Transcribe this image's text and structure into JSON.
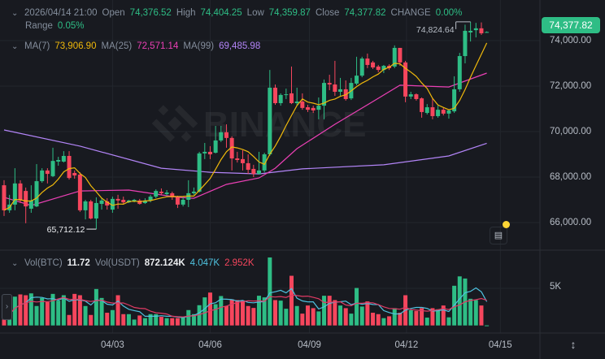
{
  "header": {
    "datetime": "2026/04/14 21:00",
    "open_label": "Open",
    "open": "74,376.52",
    "high_label": "High",
    "high": "74,404.25",
    "low_label": "Low",
    "low": "74,359.87",
    "close_label": "Close",
    "close": "74,377.82",
    "change_label": "CHANGE",
    "change": "0.00%",
    "range_label": "Range",
    "range": "0.05%"
  },
  "ma": {
    "ma7_label": "MA(7)",
    "ma7": "73,906.90",
    "ma25_label": "MA(25)",
    "ma25": "72,571.14",
    "ma99_label": "MA(99)",
    "ma99": "69,485.98"
  },
  "volume": {
    "btc_label": "Vol(BTC)",
    "btc": "11.72",
    "usdt_label": "Vol(USDT)",
    "usdt": "872.124K",
    "ma_a": "4.047K",
    "ma_b": "2.952K",
    "axis_label": "5K"
  },
  "price_badge": "74,377.82",
  "watermark": "BINANCE",
  "colors": {
    "up": "#2ebd85",
    "down": "#f6465d",
    "ma7": "#f0b90b",
    "ma25": "#eb40b5",
    "ma99": "#b385f8",
    "vol_ma_a": "#4fc3e0",
    "vol_ma_b": "#e03a64",
    "background": "#181a20"
  },
  "chart_data": {
    "type": "candlestick",
    "interval_hours": 4,
    "ylim": [
      64950,
      76000
    ],
    "y_ticks": [
      "74,000.00",
      "72,000.00",
      "70,000.00",
      "68,000.00",
      "66,000.00"
    ],
    "y_tick_values": [
      74000,
      72000,
      70000,
      68000,
      66000
    ],
    "x_ticks": [
      "04/03",
      "04/06",
      "04/09",
      "04/12",
      "04/15"
    ],
    "x_tick_candle_index": [
      20,
      38,
      56.3,
      74.2,
      91.5
    ],
    "high_marker": {
      "label": "74,824.64",
      "index": 86,
      "value": 74824.64
    },
    "low_marker": {
      "label": "65,712.12",
      "index": 17,
      "value": 65712.12
    },
    "ohlc": [
      [
        67640,
        67860,
        66290,
        66540
      ],
      [
        66540,
        67220,
        66430,
        66790
      ],
      [
        66790,
        68390,
        66540,
        67720
      ],
      [
        67720,
        67860,
        66860,
        66970
      ],
      [
        67390,
        67540,
        65970,
        66710
      ],
      [
        66610,
        67640,
        66430,
        66970
      ],
      [
        66710,
        68570,
        66680,
        67820
      ],
      [
        67820,
        68390,
        67750,
        68290
      ],
      [
        68290,
        68390,
        67720,
        68140
      ],
      [
        68040,
        69290,
        68000,
        68710
      ],
      [
        68680,
        68890,
        68500,
        68750
      ],
      [
        68680,
        69140,
        68640,
        68930
      ],
      [
        68930,
        69140,
        67890,
        67960
      ],
      [
        68180,
        68290,
        67930,
        68070
      ],
      [
        68110,
        68210,
        66470,
        66540
      ],
      [
        66540,
        67000,
        66140,
        66930
      ],
      [
        66930,
        67000,
        66140,
        66180
      ],
      [
        66180,
        67110,
        65712.12,
        66860
      ],
      [
        66820,
        67070,
        66570,
        66970
      ],
      [
        66930,
        67070,
        66570,
        66750
      ],
      [
        66570,
        67140,
        66430,
        67040
      ],
      [
        67040,
        67220,
        66610,
        66970
      ],
      [
        67000,
        67140,
        66790,
        66890
      ],
      [
        66890,
        67000,
        66860,
        66970
      ],
      [
        66930,
        67040,
        66890,
        67000
      ],
      [
        66970,
        67040,
        66790,
        66820
      ],
      [
        66860,
        67070,
        66820,
        66970
      ],
      [
        66970,
        67220,
        66890,
        67140
      ],
      [
        67140,
        67460,
        67070,
        67390
      ],
      [
        67360,
        67500,
        67220,
        67290
      ],
      [
        67250,
        67430,
        67180,
        67320
      ],
      [
        67290,
        67360,
        67000,
        67110
      ],
      [
        67110,
        67180,
        66640,
        66790
      ],
      [
        66790,
        67110,
        66710,
        67000
      ],
      [
        67000,
        67860,
        66680,
        67290
      ],
      [
        67290,
        67540,
        67220,
        67360
      ],
      [
        67360,
        69110,
        67320,
        69040
      ],
      [
        69040,
        69500,
        68790,
        69110
      ],
      [
        69110,
        69360,
        68790,
        69000
      ],
      [
        69070,
        70250,
        69040,
        69610
      ],
      [
        69610,
        70250,
        69540,
        69970
      ],
      [
        69970,
        70320,
        69290,
        69720
      ],
      [
        69720,
        69790,
        68290,
        68820
      ],
      [
        68820,
        69110,
        68640,
        68750
      ],
      [
        68790,
        69180,
        68290,
        68610
      ],
      [
        68610,
        69000,
        68140,
        68320
      ],
      [
        68360,
        68540,
        68000,
        68140
      ],
      [
        68140,
        69110,
        68110,
        68290
      ],
      [
        68290,
        69070,
        68210,
        69000
      ],
      [
        69000,
        72710,
        68930,
        71930
      ],
      [
        71930,
        72070,
        71180,
        71250
      ],
      [
        71250,
        71680,
        71140,
        71610
      ],
      [
        71610,
        71890,
        71430,
        71640
      ],
      [
        71680,
        72860,
        71210,
        71250
      ],
      [
        71250,
        71930,
        71140,
        71320
      ],
      [
        71320,
        71680,
        70960,
        71040
      ],
      [
        71070,
        71180,
        70860,
        70960
      ],
      [
        71040,
        71140,
        70820,
        70930
      ],
      [
        70960,
        71500,
        70540,
        71140
      ],
      [
        71140,
        72290,
        70540,
        72140
      ],
      [
        72140,
        72500,
        71820,
        72070
      ],
      [
        72070,
        73110,
        71570,
        71750
      ],
      [
        71750,
        72360,
        71570,
        71860
      ],
      [
        71860,
        72250,
        71360,
        71430
      ],
      [
        71460,
        72360,
        71390,
        72140
      ],
      [
        72110,
        73290,
        72040,
        72460
      ],
      [
        72460,
        73290,
        72390,
        73210
      ],
      [
        73210,
        73430,
        72790,
        72930
      ],
      [
        73040,
        73110,
        72750,
        72820
      ],
      [
        72860,
        72930,
        72610,
        72710
      ],
      [
        72710,
        72930,
        72570,
        72890
      ],
      [
        72890,
        72960,
        72710,
        72790
      ],
      [
        72860,
        73790,
        72790,
        73680
      ],
      [
        73680,
        73680,
        72890,
        73040
      ],
      [
        73040,
        73110,
        71290,
        71540
      ],
      [
        71540,
        71750,
        71430,
        71640
      ],
      [
        71640,
        71680,
        71360,
        71430
      ],
      [
        71460,
        71500,
        70610,
        70860
      ],
      [
        70820,
        71210,
        70750,
        71070
      ],
      [
        71070,
        71460,
        70540,
        70680
      ],
      [
        70680,
        71140,
        70610,
        70960
      ],
      [
        70960,
        71040,
        70710,
        70790
      ],
      [
        70790,
        70960,
        70570,
        70930
      ],
      [
        70890,
        72430,
        70820,
        71860
      ],
      [
        71860,
        73460,
        71750,
        73320
      ],
      [
        73320,
        74700,
        73000,
        74430
      ],
      [
        74360,
        74824.64,
        73960,
        74430
      ],
      [
        74460,
        74780,
        74140,
        74540
      ],
      [
        74540,
        74800,
        74250,
        74320
      ],
      [
        74376.52,
        74404.25,
        74359.87,
        74377.82
      ]
    ],
    "volume_btc": [
      800,
      2260,
      3900,
      4200,
      4090,
      4340,
      2630,
      3720,
      3180,
      4270,
      3360,
      4090,
      1420,
      4270,
      4090,
      2630,
      1420,
      4930,
      3720,
      1720,
      2080,
      4090,
      1530,
      1530,
      800,
      1350,
      990,
      1530,
      1530,
      1170,
      990,
      990,
      990,
      1170,
      2080,
      1530,
      2740,
      3800,
      4450,
      2880,
      3980,
      2630,
      3540,
      3430,
      3360,
      2630,
      2370,
      4020,
      3800,
      9200,
      3430,
      3360,
      2260,
      6720,
      2630,
      1600,
      2700,
      2340,
      1900,
      4020,
      4020,
      3430,
      2700,
      2340,
      1600,
      5070,
      2560,
      3250,
      1720,
      1530,
      990,
      1240,
      2340,
      1720,
      4090,
      2080,
      1970,
      2340,
      1060,
      2340,
      2190,
      2700,
      1100,
      5370,
      6640,
      6350,
      3610,
      3430,
      2700,
      11.72
    ],
    "volume_ylim": [
      0,
      5000
    ],
    "ma25_points": [
      [
        0,
        67110
      ],
      [
        5,
        66750
      ],
      [
        14,
        67390
      ],
      [
        23,
        67430
      ],
      [
        32,
        67110
      ],
      [
        35,
        67070
      ],
      [
        41,
        67680
      ],
      [
        47,
        67960
      ],
      [
        50,
        68390
      ],
      [
        54,
        69250
      ],
      [
        61,
        70320
      ],
      [
        68,
        71320
      ],
      [
        73,
        72040
      ],
      [
        82,
        71960
      ],
      [
        89,
        72571.14
      ]
    ],
    "ma99_points": [
      [
        0,
        70070
      ],
      [
        14,
        69360
      ],
      [
        29,
        68390
      ],
      [
        38,
        68210
      ],
      [
        47,
        68140
      ],
      [
        55,
        68360
      ],
      [
        70,
        68540
      ],
      [
        82,
        68930
      ],
      [
        89,
        69485.98
      ]
    ]
  }
}
